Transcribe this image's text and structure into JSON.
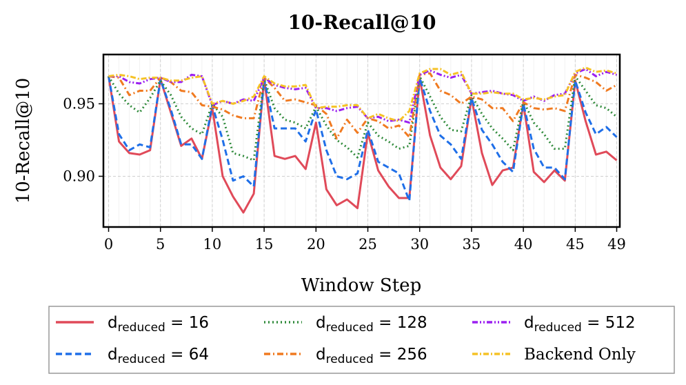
{
  "chart_data": {
    "type": "line",
    "title": "10-Recall@10",
    "xlabel": "Window Step",
    "ylabel": "10-Recall@10",
    "xlim": [
      -0.5,
      49.3
    ],
    "ylim": [
      0.865,
      0.984
    ],
    "xticks": [
      0,
      5,
      10,
      15,
      20,
      25,
      30,
      35,
      40,
      45,
      49
    ],
    "yticks": [
      0.9,
      0.95
    ],
    "ytick_labels": [
      "0.90",
      "0.95"
    ],
    "grid": true,
    "legend_position": "bottom",
    "x": [
      0,
      1,
      2,
      3,
      4,
      5,
      6,
      7,
      8,
      9,
      10,
      11,
      12,
      13,
      14,
      15,
      16,
      17,
      18,
      19,
      20,
      21,
      22,
      23,
      24,
      25,
      26,
      27,
      28,
      29,
      30,
      31,
      32,
      33,
      34,
      35,
      36,
      37,
      38,
      39,
      40,
      41,
      42,
      43,
      44,
      45,
      46,
      47,
      48,
      49
    ],
    "series": [
      {
        "name": "d_reduced = 16",
        "label_base": "d",
        "label_sub": "reduced",
        "label_rest": " = 16",
        "color": "#e04a59",
        "dash": "",
        "values": [
          0.969,
          0.924,
          0.916,
          0.915,
          0.918,
          0.967,
          0.944,
          0.921,
          0.926,
          0.912,
          0.947,
          0.9,
          0.886,
          0.875,
          0.888,
          0.967,
          0.914,
          0.912,
          0.914,
          0.905,
          0.937,
          0.891,
          0.88,
          0.884,
          0.878,
          0.93,
          0.904,
          0.893,
          0.885,
          0.885,
          0.968,
          0.928,
          0.906,
          0.898,
          0.907,
          0.954,
          0.916,
          0.894,
          0.904,
          0.906,
          0.95,
          0.903,
          0.896,
          0.904,
          0.897,
          0.966,
          0.938,
          0.915,
          0.917,
          0.911
        ]
      },
      {
        "name": "d_reduced = 64",
        "label_base": "d",
        "label_sub": "reduced",
        "label_rest": " = 64",
        "color": "#1f6fe8",
        "dash": "9,5",
        "values": [
          0.969,
          0.929,
          0.918,
          0.922,
          0.92,
          0.967,
          0.946,
          0.922,
          0.922,
          0.912,
          0.949,
          0.925,
          0.897,
          0.9,
          0.893,
          0.967,
          0.933,
          0.933,
          0.933,
          0.924,
          0.946,
          0.918,
          0.9,
          0.898,
          0.902,
          0.932,
          0.91,
          0.906,
          0.902,
          0.883,
          0.968,
          0.945,
          0.928,
          0.922,
          0.912,
          0.954,
          0.932,
          0.922,
          0.91,
          0.903,
          0.95,
          0.919,
          0.906,
          0.906,
          0.898,
          0.966,
          0.944,
          0.929,
          0.934,
          0.927
        ]
      },
      {
        "name": "d_reduced = 128",
        "label_base": "d",
        "label_sub": "reduced",
        "label_rest": " = 128",
        "color": "#2f8a3a",
        "dash": "2,4",
        "values": [
          0.969,
          0.957,
          0.949,
          0.944,
          0.954,
          0.966,
          0.956,
          0.941,
          0.933,
          0.929,
          0.95,
          0.941,
          0.916,
          0.914,
          0.911,
          0.967,
          0.947,
          0.939,
          0.937,
          0.933,
          0.948,
          0.935,
          0.925,
          0.92,
          0.913,
          0.937,
          0.928,
          0.924,
          0.919,
          0.921,
          0.969,
          0.955,
          0.941,
          0.932,
          0.931,
          0.956,
          0.943,
          0.933,
          0.926,
          0.918,
          0.952,
          0.937,
          0.929,
          0.919,
          0.919,
          0.969,
          0.959,
          0.949,
          0.947,
          0.941
        ]
      },
      {
        "name": "d_reduced = 256",
        "label_base": "d",
        "label_sub": "reduced",
        "label_rest": " = 256",
        "color": "#f07a20",
        "dash": "9,4,2,4",
        "values": [
          0.969,
          0.968,
          0.956,
          0.959,
          0.959,
          0.968,
          0.965,
          0.959,
          0.958,
          0.949,
          0.948,
          0.946,
          0.942,
          0.94,
          0.94,
          0.968,
          0.961,
          0.952,
          0.953,
          0.951,
          0.949,
          0.943,
          0.926,
          0.939,
          0.93,
          0.94,
          0.938,
          0.933,
          0.935,
          0.927,
          0.97,
          0.971,
          0.959,
          0.956,
          0.95,
          0.955,
          0.953,
          0.947,
          0.947,
          0.938,
          0.951,
          0.947,
          0.946,
          0.947,
          0.945,
          0.97,
          0.968,
          0.965,
          0.959,
          0.963
        ]
      },
      {
        "name": "d_reduced = 512",
        "label_base": "d",
        "label_sub": "reduced",
        "label_rest": " = 512",
        "color": "#9b20f0",
        "dash": "8,3,2,3,2,3",
        "values": [
          0.969,
          0.969,
          0.965,
          0.964,
          0.967,
          0.968,
          0.965,
          0.965,
          0.97,
          0.969,
          0.949,
          0.952,
          0.95,
          0.953,
          0.952,
          0.968,
          0.963,
          0.961,
          0.96,
          0.961,
          0.947,
          0.947,
          0.945,
          0.947,
          0.948,
          0.94,
          0.941,
          0.938,
          0.939,
          0.937,
          0.97,
          0.973,
          0.97,
          0.968,
          0.97,
          0.957,
          0.958,
          0.959,
          0.957,
          0.956,
          0.952,
          0.955,
          0.952,
          0.956,
          0.957,
          0.971,
          0.974,
          0.969,
          0.972,
          0.97
        ]
      },
      {
        "name": "Backend Only",
        "label_base": "Backend Only",
        "label_sub": "",
        "label_rest": "",
        "color": "#f5c226",
        "dash": "8,3,2,3",
        "values": [
          0.969,
          0.97,
          0.969,
          0.967,
          0.968,
          0.968,
          0.966,
          0.966,
          0.968,
          0.969,
          0.95,
          0.952,
          0.95,
          0.952,
          0.955,
          0.969,
          0.964,
          0.962,
          0.962,
          0.963,
          0.947,
          0.948,
          0.948,
          0.949,
          0.949,
          0.94,
          0.943,
          0.94,
          0.938,
          0.945,
          0.971,
          0.974,
          0.974,
          0.97,
          0.972,
          0.957,
          0.957,
          0.958,
          0.957,
          0.957,
          0.953,
          0.954,
          0.953,
          0.955,
          0.956,
          0.972,
          0.975,
          0.972,
          0.973,
          0.971
        ]
      }
    ]
  }
}
